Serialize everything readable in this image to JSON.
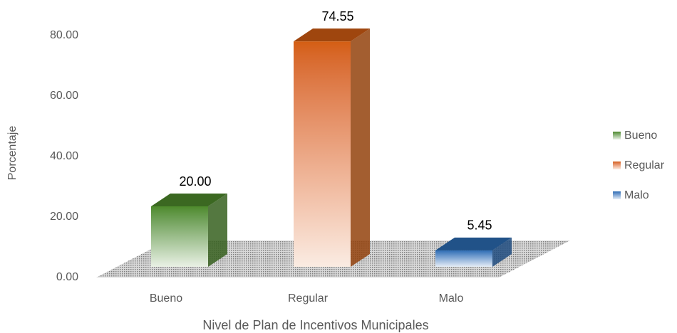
{
  "chart_data": {
    "type": "bar3d",
    "categories": [
      "Bueno",
      "Regular",
      "Malo"
    ],
    "values": [
      20,
      74.55,
      5.45
    ],
    "value_labels": [
      "20.00",
      "74.55",
      "5.45"
    ],
    "colors": [
      "#4e8a2c",
      "#d45e12",
      "#2c6db5"
    ],
    "ylabel": "Porcentaje",
    "xlabel": "Nivel de Plan de Incentivos Municipales",
    "ylim": [
      0,
      80
    ],
    "yticks": [
      {
        "value": 0,
        "label": "0.00"
      },
      {
        "value": 20,
        "label": "20.00"
      },
      {
        "value": 40,
        "label": "40.00"
      },
      {
        "value": 60,
        "label": "60.00"
      },
      {
        "value": 80,
        "label": "80.00"
      }
    ],
    "legend": "right"
  }
}
